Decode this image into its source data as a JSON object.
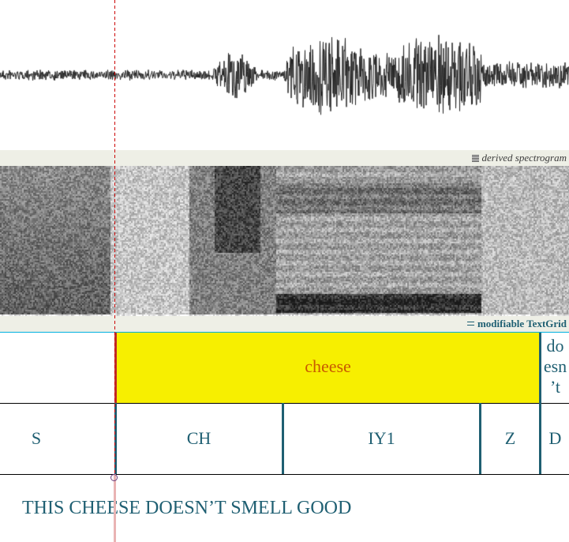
{
  "spectrogram_header": {
    "label": "derived spectrogram",
    "icon": "spectrogram-icon"
  },
  "textgrid_header": {
    "label": "modifiable TextGrid",
    "icon": "textgrid-icon"
  },
  "word_tier": {
    "intervals": [
      {
        "text": "",
        "selected": false
      },
      {
        "text": "cheese",
        "selected": true
      },
      {
        "text": "do\nesn\n’t",
        "selected": false
      }
    ]
  },
  "phone_tier": {
    "intervals": [
      {
        "text": "S"
      },
      {
        "text": "CH"
      },
      {
        "text": "IY1"
      },
      {
        "text": "Z"
      },
      {
        "text": "D"
      }
    ]
  },
  "transcript": "THIS CHEESE DOESN’T SMELL GOOD",
  "colors": {
    "selection": "#f7ef00",
    "tier_text": "#1f5f72",
    "selected_text": "#c85a00",
    "cursor": "#cc0000",
    "panel_header": "#eeefe6"
  }
}
